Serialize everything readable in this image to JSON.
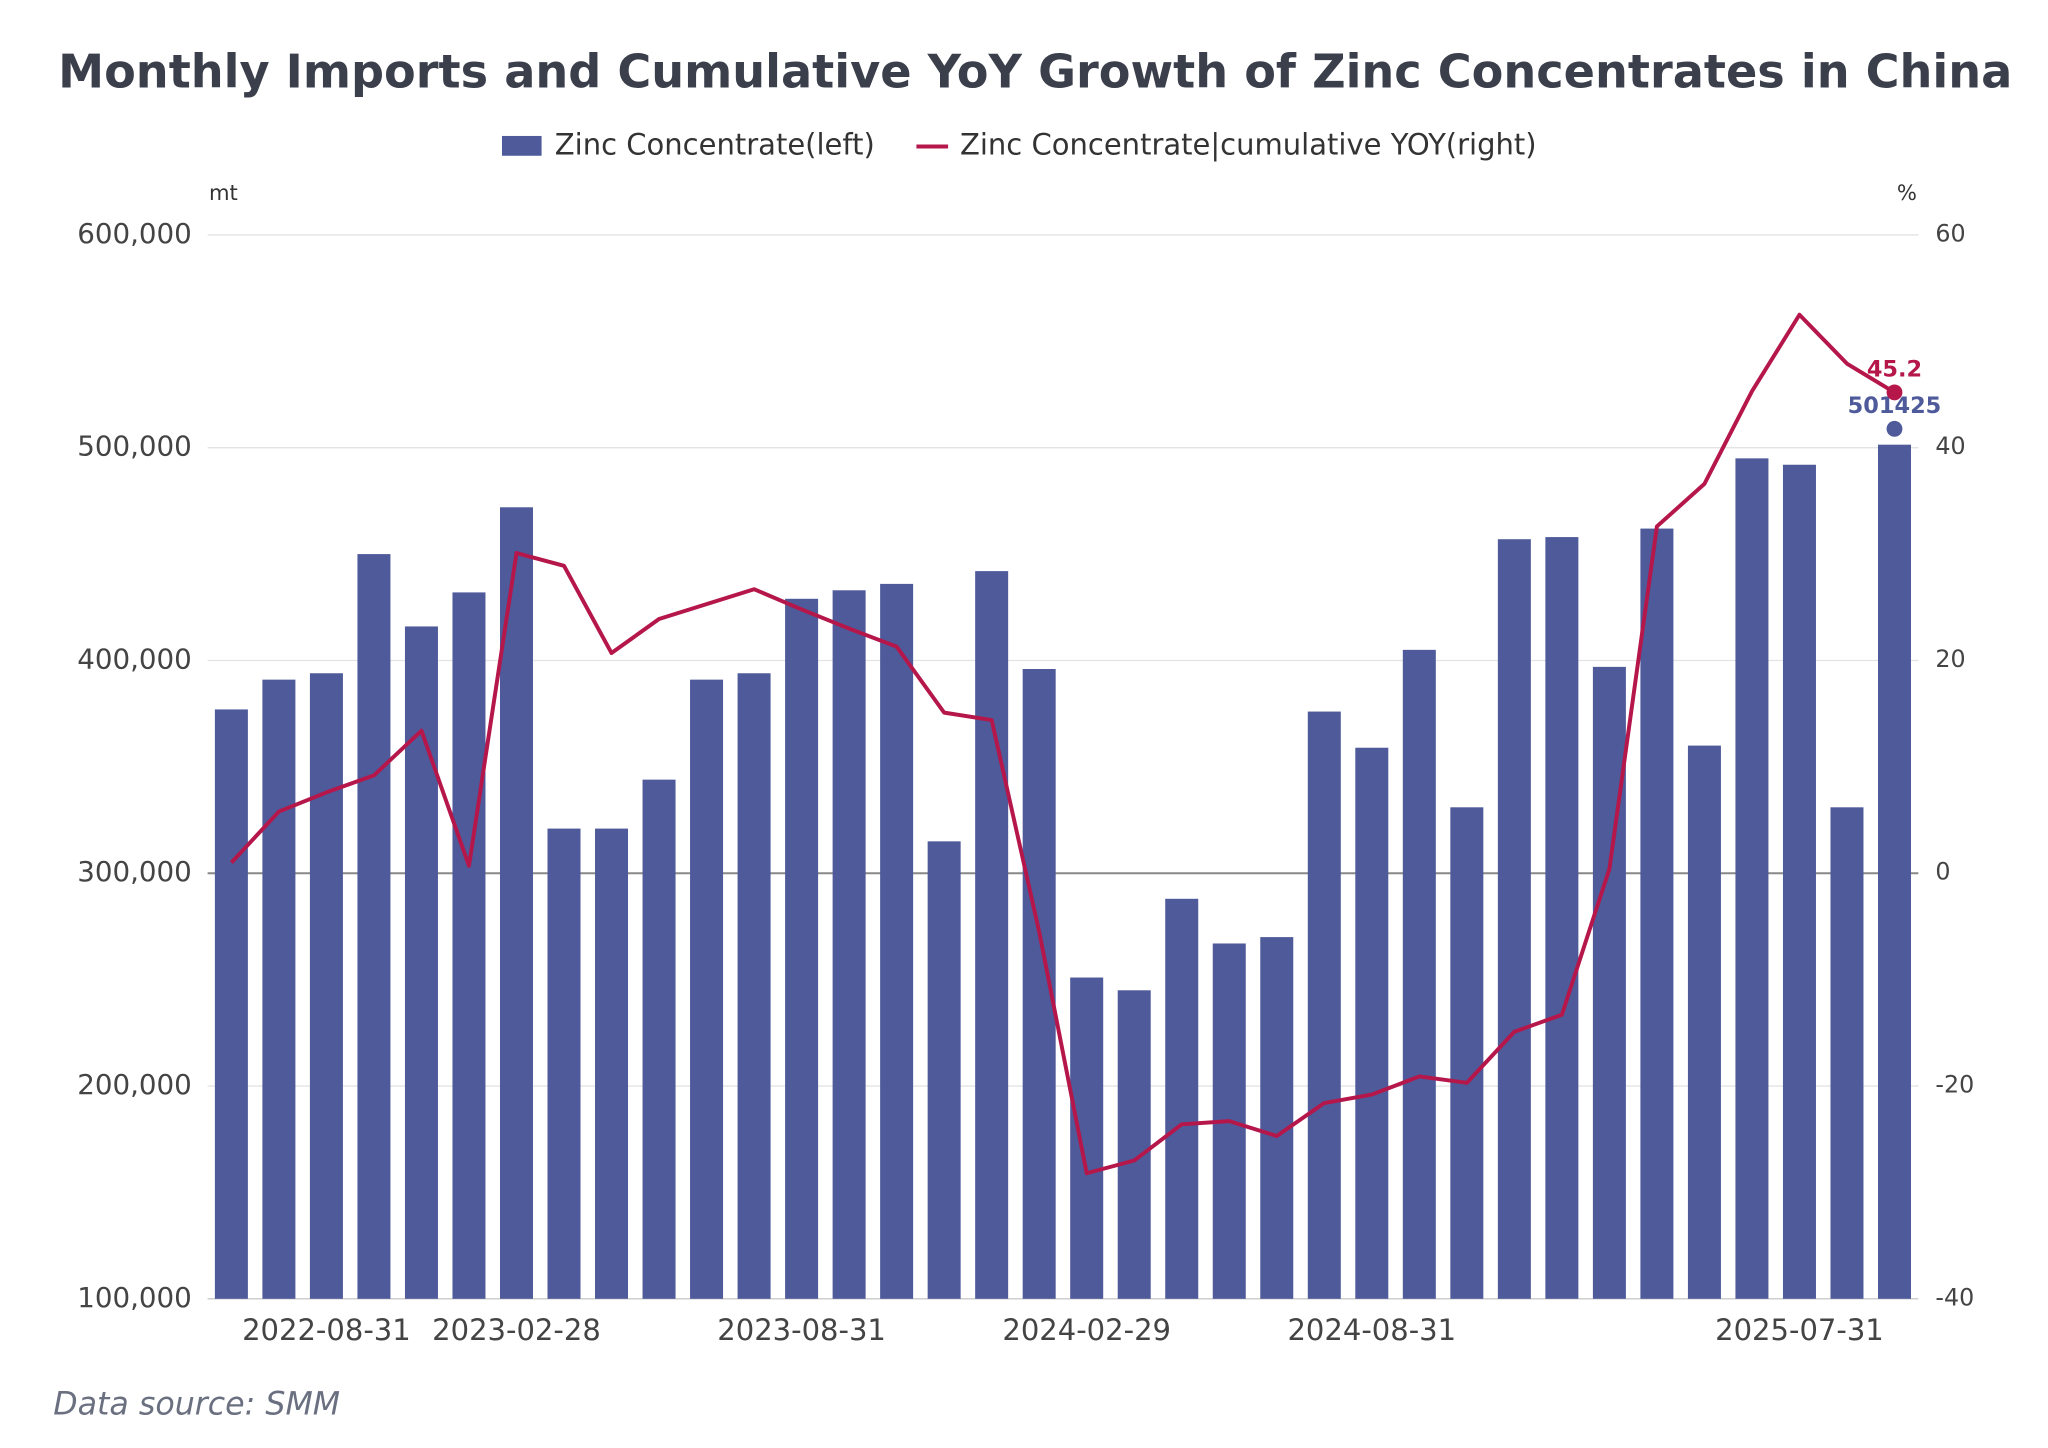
{
  "chart_data": {
    "type": "bar_line",
    "title": "Monthly Imports and Cumulative YoY Growth of Zinc Concentrates in China",
    "y_label": "mt",
    "y2_label": "%",
    "source": "Data source:  SMM",
    "categories": [
      null,
      null,
      "2022-08-31",
      null,
      null,
      null,
      "2023-02-28",
      null,
      null,
      null,
      null,
      null,
      "2023-08-31",
      null,
      null,
      null,
      null,
      null,
      "2024-02-29",
      null,
      null,
      null,
      null,
      null,
      "2024-08-31",
      null,
      null,
      null,
      null,
      null,
      null,
      null,
      null,
      "2025-07-31",
      null,
      null
    ],
    "series": [
      {
        "name": "Zinc Concentrate(left)",
        "color": "#4e5a9a",
        "kind": "bar",
        "axis": "y",
        "values": [
          377000,
          391000,
          394000,
          450000,
          416000,
          432000,
          472000,
          321000,
          321000,
          344000,
          391000,
          394000,
          429000,
          433000,
          436000,
          315000,
          442000,
          396000,
          251000,
          245000,
          288000,
          267000,
          270000,
          376000,
          359000,
          405000,
          331000,
          457000,
          458000,
          397000,
          462000,
          360000,
          495000,
          492000,
          331000,
          501425
        ]
      },
      {
        "name": "Zinc Concentrate|cumulative YOY(right)",
        "color": "#b5174b",
        "kind": "line",
        "axis": "y2",
        "values": [
          1.0,
          5.8,
          7.6,
          9.2,
          13.4,
          0.7,
          30.1,
          28.9,
          20.7,
          23.9,
          25.3,
          26.7,
          24.8,
          23.0,
          21.3,
          15.1,
          14.4,
          -5.5,
          -28.2,
          -27.0,
          -23.6,
          -23.3,
          -24.7,
          -21.6,
          -20.8,
          -19.1,
          -19.7,
          -14.9,
          -13.3,
          0.4,
          32.6,
          36.6,
          45.3,
          52.5,
          47.9,
          45.2
        ]
      }
    ],
    "ylim": [
      100000,
      600000
    ],
    "yticks": [
      {
        "value": 100000,
        "label": "100,000"
      },
      {
        "value": 200000,
        "label": "200,000"
      },
      {
        "value": 300000,
        "label": "300,000"
      },
      {
        "value": 400000,
        "label": "400,000"
      },
      {
        "value": 500000,
        "label": "500,000"
      },
      {
        "value": 600000,
        "label": "600,000"
      }
    ],
    "y2lim": [
      -40,
      60
    ],
    "y2ticks": [
      -40,
      -20,
      0,
      20,
      40,
      60
    ],
    "grid": true
  }
}
